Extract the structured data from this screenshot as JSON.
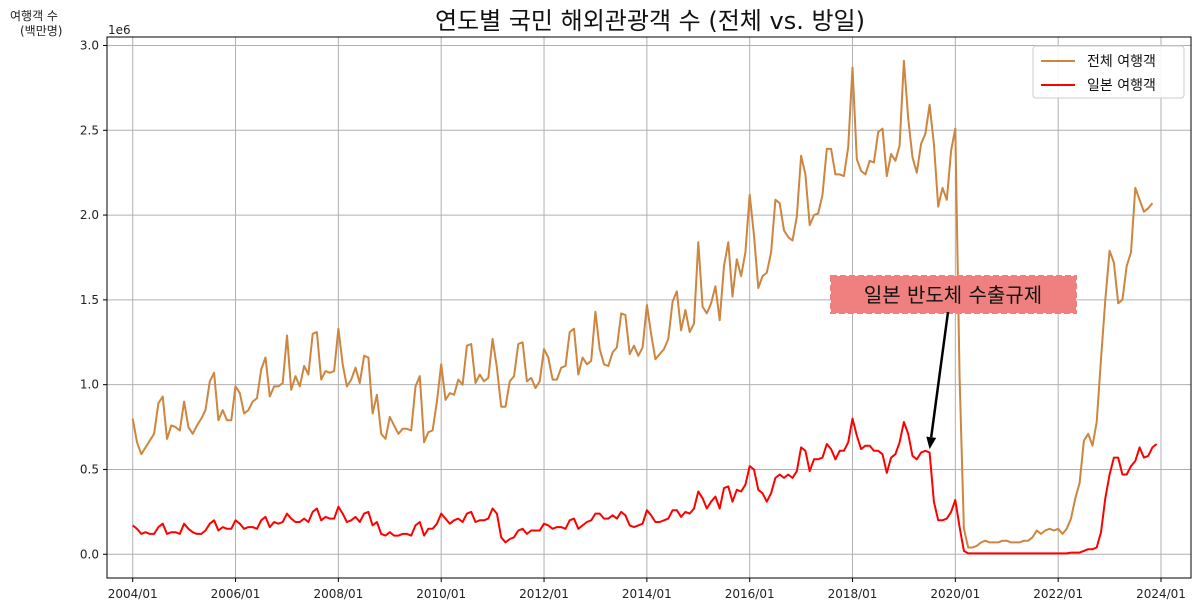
{
  "chart_data": {
    "type": "line",
    "title": "연도별 국민 해외관광객 수 (전체 vs. 방일)",
    "ylabel": "여행객 수\n(백만명)",
    "y_offset_label": "1e6",
    "ylim": [
      -0.14,
      3.05
    ],
    "yticks": [
      0.0,
      0.5,
      1.0,
      1.5,
      2.0,
      2.5,
      3.0
    ],
    "ytick_labels": [
      "0.0",
      "0.5",
      "1.0",
      "1.5",
      "2.0",
      "2.5",
      "3.0"
    ],
    "xlim": [
      "2003-07",
      "2024-08"
    ],
    "xticks": [
      "2004-01",
      "2006-01",
      "2008-01",
      "2010-01",
      "2012-01",
      "2014-01",
      "2016-01",
      "2018-01",
      "2020-01",
      "2022-01",
      "2024-01"
    ],
    "xtick_labels": [
      "2004/01",
      "2006/01",
      "2008/01",
      "2010/01",
      "2012/01",
      "2014/01",
      "2016/01",
      "2018/01",
      "2020/01",
      "2022/01",
      "2024/01"
    ],
    "grid": true,
    "legend_position": "top-right",
    "x_start": "2004-01",
    "series": [
      {
        "name": "전체 여행객",
        "color": "#cd853f",
        "values": [
          0.8,
          0.66,
          0.59,
          0.63,
          0.67,
          0.71,
          0.89,
          0.93,
          0.68,
          0.76,
          0.75,
          0.73,
          0.9,
          0.75,
          0.71,
          0.76,
          0.8,
          0.85,
          1.02,
          1.07,
          0.79,
          0.85,
          0.79,
          0.79,
          0.99,
          0.95,
          0.83,
          0.85,
          0.9,
          0.92,
          1.09,
          1.16,
          0.93,
          0.99,
          0.99,
          1.01,
          1.29,
          0.97,
          1.05,
          0.99,
          1.11,
          1.06,
          1.3,
          1.31,
          1.03,
          1.08,
          1.07,
          1.08,
          1.33,
          1.12,
          0.99,
          1.03,
          1.1,
          1.01,
          1.17,
          1.16,
          0.83,
          0.94,
          0.71,
          0.68,
          0.81,
          0.76,
          0.71,
          0.74,
          0.74,
          0.73,
          0.99,
          1.05,
          0.66,
          0.72,
          0.73,
          0.9,
          1.12,
          0.91,
          0.95,
          0.94,
          1.03,
          1.0,
          1.23,
          1.24,
          1.01,
          1.06,
          1.02,
          1.04,
          1.27,
          1.1,
          0.87,
          0.87,
          1.02,
          1.05,
          1.24,
          1.25,
          1.02,
          1.04,
          0.98,
          1.02,
          1.21,
          1.16,
          1.03,
          1.03,
          1.1,
          1.11,
          1.31,
          1.33,
          1.06,
          1.16,
          1.12,
          1.14,
          1.43,
          1.21,
          1.12,
          1.11,
          1.19,
          1.22,
          1.42,
          1.41,
          1.18,
          1.23,
          1.17,
          1.22,
          1.47,
          1.3,
          1.15,
          1.18,
          1.21,
          1.27,
          1.49,
          1.55,
          1.32,
          1.44,
          1.31,
          1.36,
          1.84,
          1.46,
          1.42,
          1.48,
          1.58,
          1.38,
          1.7,
          1.84,
          1.52,
          1.74,
          1.64,
          1.78,
          2.12,
          1.88,
          1.57,
          1.64,
          1.66,
          1.78,
          2.09,
          2.07,
          1.91,
          1.87,
          1.85,
          1.99,
          2.35,
          2.24,
          1.94,
          2.0,
          2.01,
          2.12,
          2.39,
          2.39,
          2.24,
          2.24,
          2.23,
          2.4,
          2.87,
          2.33,
          2.26,
          2.24,
          2.32,
          2.31,
          2.49,
          2.51,
          2.23,
          2.36,
          2.32,
          2.41,
          2.91,
          2.57,
          2.34,
          2.25,
          2.42,
          2.48,
          2.65,
          2.42,
          2.05,
          2.16,
          2.09,
          2.38,
          2.51,
          1.04,
          0.15,
          0.04,
          0.04,
          0.05,
          0.07,
          0.08,
          0.07,
          0.07,
          0.07,
          0.08,
          0.08,
          0.07,
          0.07,
          0.07,
          0.08,
          0.08,
          0.1,
          0.14,
          0.12,
          0.14,
          0.15,
          0.14,
          0.15,
          0.12,
          0.15,
          0.21,
          0.33,
          0.42,
          0.67,
          0.71,
          0.64,
          0.78,
          1.15,
          1.5,
          1.79,
          1.72,
          1.48,
          1.5,
          1.7,
          1.78,
          2.16,
          2.09,
          2.02,
          2.04,
          2.07
        ]
      },
      {
        "name": "일본 여행객",
        "color": "#ff0000",
        "values": [
          0.17,
          0.15,
          0.12,
          0.13,
          0.12,
          0.12,
          0.16,
          0.18,
          0.12,
          0.13,
          0.13,
          0.12,
          0.18,
          0.15,
          0.13,
          0.12,
          0.12,
          0.14,
          0.18,
          0.2,
          0.14,
          0.16,
          0.15,
          0.15,
          0.2,
          0.18,
          0.15,
          0.16,
          0.16,
          0.15,
          0.2,
          0.22,
          0.16,
          0.19,
          0.18,
          0.19,
          0.24,
          0.21,
          0.19,
          0.19,
          0.21,
          0.19,
          0.25,
          0.27,
          0.2,
          0.22,
          0.21,
          0.21,
          0.28,
          0.24,
          0.19,
          0.2,
          0.22,
          0.19,
          0.24,
          0.25,
          0.17,
          0.19,
          0.12,
          0.11,
          0.13,
          0.11,
          0.11,
          0.12,
          0.12,
          0.11,
          0.17,
          0.19,
          0.11,
          0.15,
          0.15,
          0.18,
          0.24,
          0.21,
          0.18,
          0.2,
          0.21,
          0.19,
          0.24,
          0.25,
          0.19,
          0.2,
          0.2,
          0.21,
          0.27,
          0.24,
          0.1,
          0.07,
          0.09,
          0.1,
          0.14,
          0.15,
          0.12,
          0.14,
          0.14,
          0.14,
          0.18,
          0.17,
          0.15,
          0.16,
          0.16,
          0.15,
          0.2,
          0.21,
          0.15,
          0.17,
          0.19,
          0.2,
          0.24,
          0.24,
          0.21,
          0.21,
          0.23,
          0.21,
          0.25,
          0.23,
          0.17,
          0.16,
          0.17,
          0.18,
          0.26,
          0.23,
          0.19,
          0.19,
          0.2,
          0.21,
          0.26,
          0.26,
          0.22,
          0.25,
          0.24,
          0.27,
          0.37,
          0.33,
          0.27,
          0.31,
          0.34,
          0.27,
          0.39,
          0.4,
          0.31,
          0.38,
          0.37,
          0.41,
          0.52,
          0.5,
          0.38,
          0.36,
          0.31,
          0.36,
          0.45,
          0.47,
          0.45,
          0.47,
          0.45,
          0.49,
          0.63,
          0.61,
          0.49,
          0.56,
          0.56,
          0.57,
          0.65,
          0.62,
          0.56,
          0.61,
          0.61,
          0.66,
          0.8,
          0.7,
          0.62,
          0.64,
          0.64,
          0.61,
          0.61,
          0.59,
          0.48,
          0.57,
          0.59,
          0.66,
          0.78,
          0.71,
          0.58,
          0.56,
          0.6,
          0.61,
          0.6,
          0.31,
          0.2,
          0.2,
          0.21,
          0.25,
          0.32,
          0.16,
          0.02,
          0.005,
          0.005,
          0.005,
          0.005,
          0.005,
          0.005,
          0.005,
          0.005,
          0.005,
          0.005,
          0.005,
          0.005,
          0.005,
          0.005,
          0.005,
          0.005,
          0.005,
          0.005,
          0.005,
          0.005,
          0.005,
          0.005,
          0.005,
          0.005,
          0.01,
          0.01,
          0.01,
          0.02,
          0.03,
          0.03,
          0.04,
          0.13,
          0.33,
          0.47,
          0.57,
          0.57,
          0.47,
          0.47,
          0.52,
          0.55,
          0.63,
          0.57,
          0.58,
          0.63,
          0.65
        ]
      }
    ],
    "annotation": {
      "text": "일본 반도체 수출규제",
      "target_date": "2019-07",
      "target_value": 0.62,
      "box_color": "#f08080"
    }
  }
}
